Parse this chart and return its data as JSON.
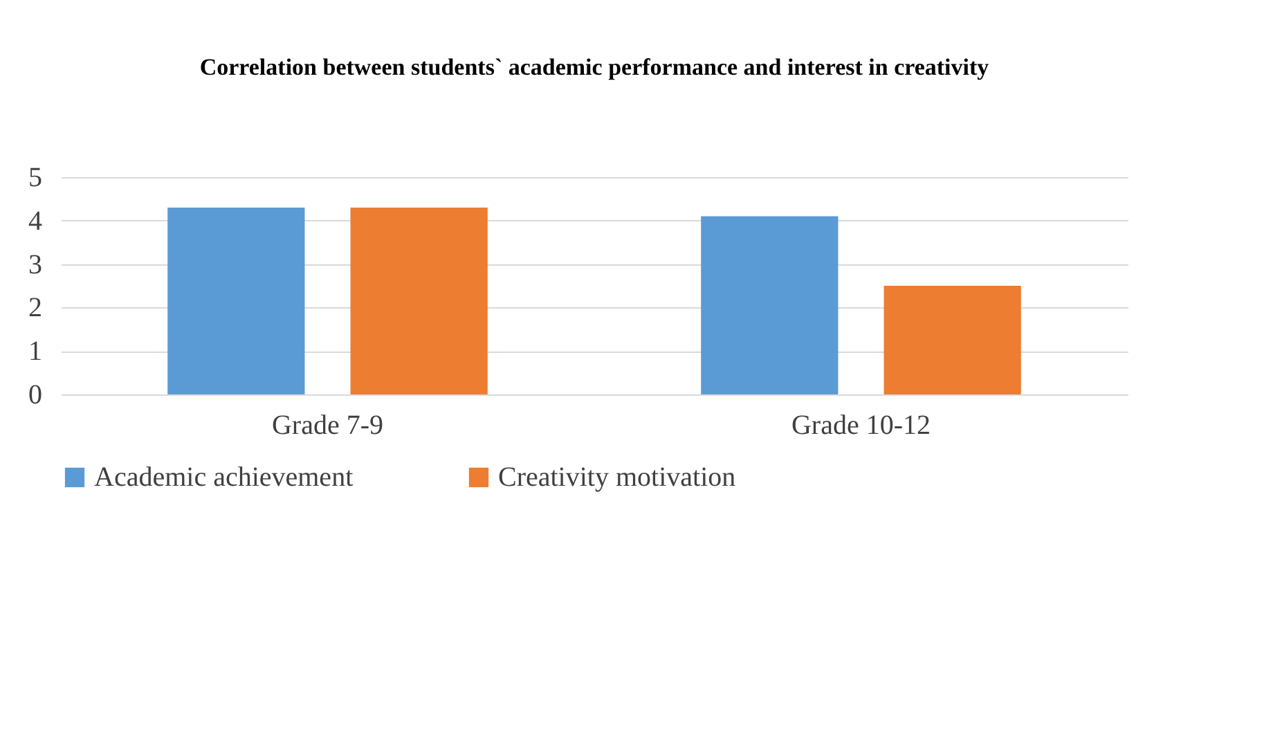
{
  "chart_data": {
    "type": "bar",
    "title": "Correlation between students` academic performance and interest in creativity",
    "categories": [
      "Grade 7-9",
      "Grade 10-12"
    ],
    "series": [
      {
        "name": "Academic achievement",
        "color": "#5b9bd5",
        "values": [
          4.3,
          4.1
        ]
      },
      {
        "name": "Creativity motivation",
        "color": "#ed7d31",
        "values": [
          4.3,
          2.5
        ]
      }
    ],
    "ylim": [
      0,
      5
    ],
    "yticks": [
      0,
      1,
      2,
      3,
      4,
      5
    ],
    "grid": "y",
    "legend": "bottom"
  }
}
